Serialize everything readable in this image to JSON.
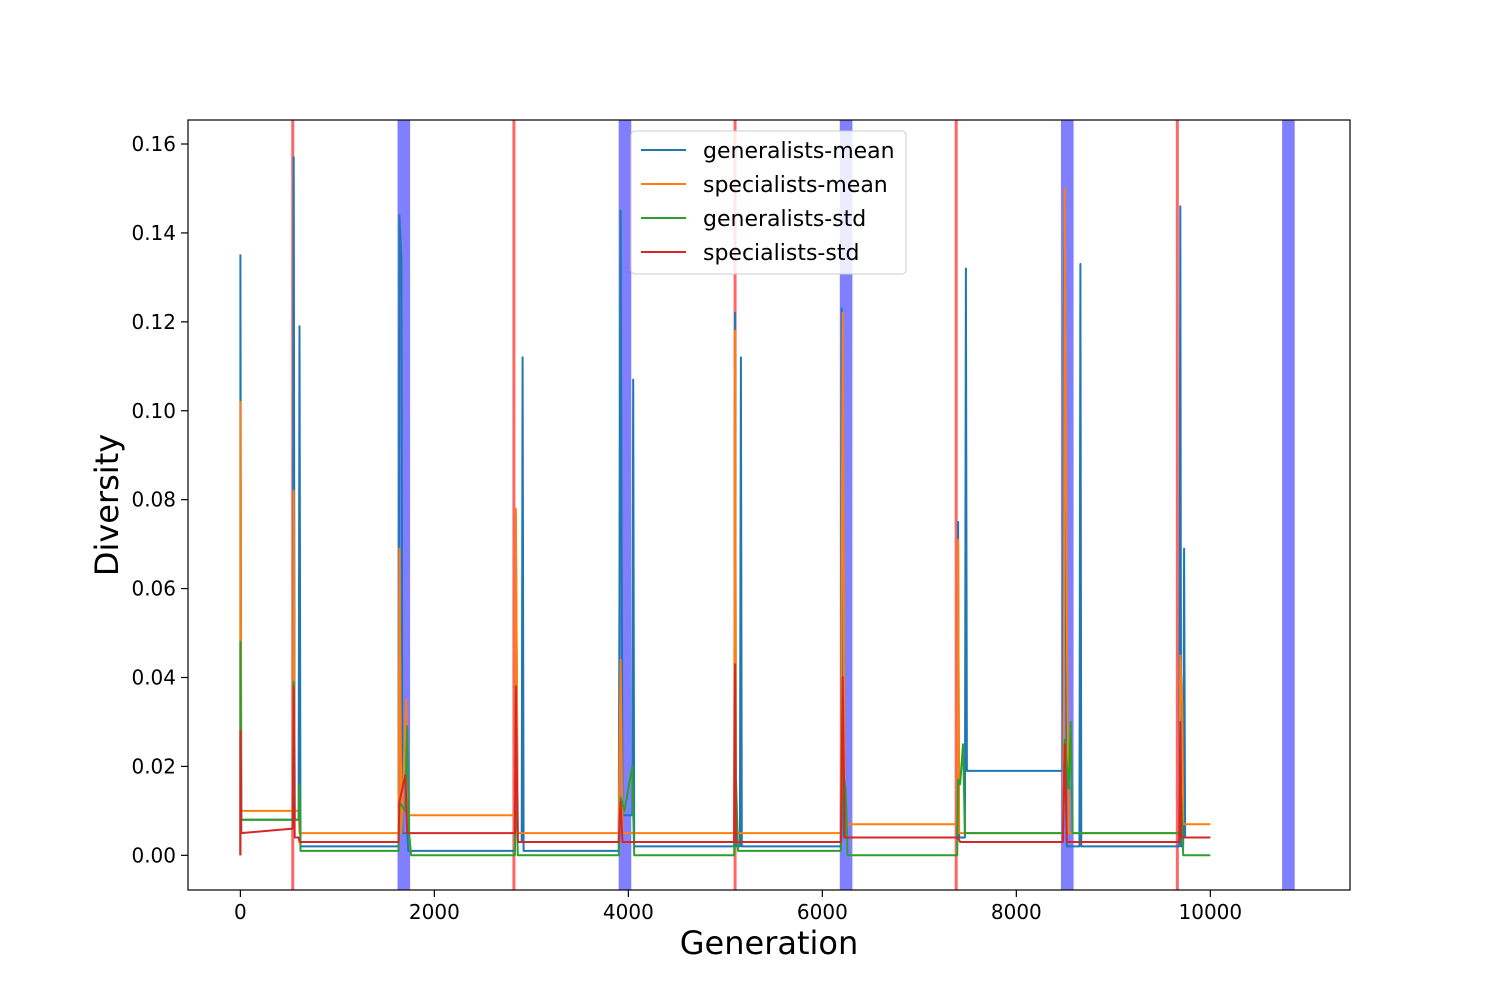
{
  "chart_data": {
    "type": "line",
    "title": "",
    "xlabel": "Generation",
    "ylabel": "Diversity",
    "xlim": [
      -540,
      11440
    ],
    "ylim": [
      -0.0078,
      0.1654
    ],
    "xticks": [
      0,
      2000,
      4000,
      6000,
      8000,
      10000
    ],
    "yticks": [
      0.0,
      0.02,
      0.04,
      0.06,
      0.08,
      0.1,
      0.12,
      0.14,
      0.16
    ],
    "xtick_labels": [
      "0",
      "2000",
      "4000",
      "6000",
      "8000",
      "10000"
    ],
    "ytick_labels": [
      "0.00",
      "0.02",
      "0.04",
      "0.06",
      "0.08",
      "0.10",
      "0.12",
      "0.14",
      "0.16"
    ],
    "grid": false,
    "legend": "top-center",
    "series": [
      {
        "name": "generalists-mean",
        "color": "#1f77b4",
        "points": [
          [
            0,
            0.0
          ],
          [
            0,
            0.135
          ],
          [
            10,
            0.008
          ],
          [
            540,
            0.008
          ],
          [
            550,
            0.157
          ],
          [
            560,
            0.008
          ],
          [
            600,
            0.008
          ],
          [
            610,
            0.119
          ],
          [
            620,
            0.002
          ],
          [
            1630,
            0.002
          ],
          [
            1640,
            0.144
          ],
          [
            1660,
            0.134
          ],
          [
            1670,
            0.005
          ],
          [
            1720,
            0.005
          ],
          [
            1730,
            0.001
          ],
          [
            2830,
            0.001
          ],
          [
            2840,
            0.077
          ],
          [
            2860,
            0.003
          ],
          [
            2900,
            0.003
          ],
          [
            2910,
            0.112
          ],
          [
            2920,
            0.001
          ],
          [
            3900,
            0.001
          ],
          [
            3920,
            0.145
          ],
          [
            3940,
            0.009
          ],
          [
            4040,
            0.009
          ],
          [
            4050,
            0.107
          ],
          [
            4060,
            0.002
          ],
          [
            5090,
            0.002
          ],
          [
            5100,
            0.122
          ],
          [
            5110,
            0.002
          ],
          [
            5150,
            0.002
          ],
          [
            5160,
            0.112
          ],
          [
            5170,
            0.002
          ],
          [
            6190,
            0.002
          ],
          [
            6200,
            0.123
          ],
          [
            6220,
            0.004
          ],
          [
            7390,
            0.004
          ],
          [
            7400,
            0.075
          ],
          [
            7410,
            0.004
          ],
          [
            7470,
            0.004
          ],
          [
            7480,
            0.132
          ],
          [
            7490,
            0.019
          ],
          [
            8480,
            0.019
          ],
          [
            8490,
            0.127
          ],
          [
            8500,
            0.148
          ],
          [
            8520,
            0.002
          ],
          [
            8650,
            0.002
          ],
          [
            8660,
            0.133
          ],
          [
            8670,
            0.002
          ],
          [
            9680,
            0.002
          ],
          [
            9690,
            0.146
          ],
          [
            9700,
            0.002
          ],
          [
            9720,
            0.002
          ],
          [
            9730,
            0.069
          ],
          [
            9740,
            0.004
          ],
          [
            10000,
            0.004
          ]
        ]
      },
      {
        "name": "specialists-mean",
        "color": "#ff7f0e",
        "points": [
          [
            0,
            0.0
          ],
          [
            0,
            0.102
          ],
          [
            10,
            0.01
          ],
          [
            540,
            0.01
          ],
          [
            550,
            0.082
          ],
          [
            560,
            0.01
          ],
          [
            600,
            0.01
          ],
          [
            610,
            0.005
          ],
          [
            1630,
            0.005
          ],
          [
            1640,
            0.069
          ],
          [
            1660,
            0.005
          ],
          [
            1710,
            0.035
          ],
          [
            1730,
            0.009
          ],
          [
            2830,
            0.009
          ],
          [
            2840,
            0.078
          ],
          [
            2860,
            0.005
          ],
          [
            3900,
            0.005
          ],
          [
            3920,
            0.044
          ],
          [
            3940,
            0.005
          ],
          [
            5090,
            0.005
          ],
          [
            5100,
            0.118
          ],
          [
            5110,
            0.005
          ],
          [
            6190,
            0.005
          ],
          [
            6210,
            0.122
          ],
          [
            6230,
            0.007
          ],
          [
            7390,
            0.007
          ],
          [
            7400,
            0.071
          ],
          [
            7410,
            0.005
          ],
          [
            8480,
            0.005
          ],
          [
            8490,
            0.036
          ],
          [
            8500,
            0.15
          ],
          [
            8520,
            0.054
          ],
          [
            8540,
            0.005
          ],
          [
            9680,
            0.005
          ],
          [
            9690,
            0.045
          ],
          [
            9710,
            0.034
          ],
          [
            9720,
            0.007
          ],
          [
            10000,
            0.007
          ]
        ]
      },
      {
        "name": "generalists-std",
        "color": "#2ca02c",
        "points": [
          [
            0,
            0.0
          ],
          [
            0,
            0.048
          ],
          [
            10,
            0.008
          ],
          [
            540,
            0.008
          ],
          [
            550,
            0.039
          ],
          [
            560,
            0.008
          ],
          [
            600,
            0.008
          ],
          [
            610,
            0.016
          ],
          [
            620,
            0.001
          ],
          [
            1630,
            0.001
          ],
          [
            1640,
            0.012
          ],
          [
            1700,
            0.01
          ],
          [
            1720,
            0.029
          ],
          [
            1740,
            0.005
          ],
          [
            1760,
            0.0
          ],
          [
            2830,
            0.0
          ],
          [
            2840,
            0.02
          ],
          [
            2860,
            0.0
          ],
          [
            3900,
            0.0
          ],
          [
            3920,
            0.013
          ],
          [
            3960,
            0.01
          ],
          [
            4040,
            0.02
          ],
          [
            4060,
            0.0
          ],
          [
            5090,
            0.0
          ],
          [
            5110,
            0.017
          ],
          [
            5130,
            0.001
          ],
          [
            6190,
            0.001
          ],
          [
            6210,
            0.019
          ],
          [
            6240,
            0.015
          ],
          [
            6260,
            0.0
          ],
          [
            7390,
            0.0
          ],
          [
            7400,
            0.017
          ],
          [
            7420,
            0.016
          ],
          [
            7450,
            0.025
          ],
          [
            7470,
            0.005
          ],
          [
            8480,
            0.005
          ],
          [
            8500,
            0.026
          ],
          [
            8540,
            0.015
          ],
          [
            8560,
            0.03
          ],
          [
            8580,
            0.005
          ],
          [
            9680,
            0.005
          ],
          [
            9700,
            0.014
          ],
          [
            9720,
            0.0
          ],
          [
            10000,
            0.0
          ]
        ]
      },
      {
        "name": "specialists-std",
        "color": "#d62728",
        "points": [
          [
            0,
            0.0
          ],
          [
            0,
            0.028
          ],
          [
            10,
            0.005
          ],
          [
            540,
            0.006
          ],
          [
            550,
            0.038
          ],
          [
            560,
            0.004
          ],
          [
            600,
            0.004
          ],
          [
            610,
            0.003
          ],
          [
            1630,
            0.003
          ],
          [
            1640,
            0.012
          ],
          [
            1700,
            0.018
          ],
          [
            1720,
            0.005
          ],
          [
            2830,
            0.005
          ],
          [
            2840,
            0.038
          ],
          [
            2860,
            0.003
          ],
          [
            3900,
            0.003
          ],
          [
            3920,
            0.012
          ],
          [
            3940,
            0.003
          ],
          [
            5090,
            0.003
          ],
          [
            5100,
            0.043
          ],
          [
            5110,
            0.003
          ],
          [
            6190,
            0.003
          ],
          [
            6210,
            0.04
          ],
          [
            6230,
            0.004
          ],
          [
            7390,
            0.004
          ],
          [
            7400,
            0.004
          ],
          [
            7420,
            0.003
          ],
          [
            8480,
            0.003
          ],
          [
            8500,
            0.025
          ],
          [
            8520,
            0.003
          ],
          [
            9680,
            0.003
          ],
          [
            9690,
            0.03
          ],
          [
            9700,
            0.004
          ],
          [
            10000,
            0.004
          ]
        ]
      }
    ],
    "vertical_lines": {
      "color": "#ff0000",
      "x": [
        540,
        2820,
        5100,
        7380,
        9660
      ]
    },
    "vertical_bands": {
      "color": "#0000ff",
      "ranges": [
        [
          1620,
          1750
        ],
        [
          3900,
          4030
        ],
        [
          6180,
          6310
        ],
        [
          8460,
          8590
        ],
        [
          10740,
          10870
        ]
      ]
    }
  }
}
